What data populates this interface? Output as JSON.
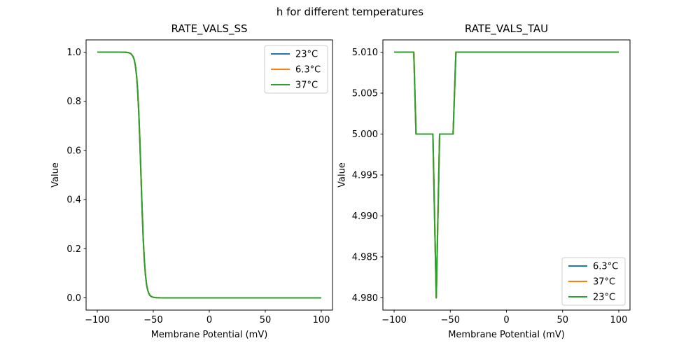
{
  "figure": {
    "suptitle": "h for different temperatures",
    "background": "#ffffff",
    "text_color": "#000000"
  },
  "chart_data": [
    {
      "type": "line",
      "title": "RATE_VALS_SS",
      "xlabel": "Membrane Potential (mV)",
      "ylabel": "Value",
      "xlim": [
        -110,
        110
      ],
      "ylim": [
        -0.05,
        1.05
      ],
      "grid": false,
      "xticks": [
        {
          "v": -100,
          "label": "−100"
        },
        {
          "v": -50,
          "label": "−50"
        },
        {
          "v": 0,
          "label": "0"
        },
        {
          "v": 50,
          "label": "50"
        },
        {
          "v": 100,
          "label": "100"
        }
      ],
      "yticks": [
        {
          "v": 0.0,
          "label": "0.0"
        },
        {
          "v": 0.2,
          "label": "0.2"
        },
        {
          "v": 0.4,
          "label": "0.4"
        },
        {
          "v": 0.6,
          "label": "0.6"
        },
        {
          "v": 0.8,
          "label": "0.8"
        },
        {
          "v": 1.0,
          "label": "1.0"
        }
      ],
      "legend": {
        "loc": "upper right",
        "entries": [
          {
            "label": "23°C",
            "color": "#1f77b4"
          },
          {
            "label": "6.3°C",
            "color": "#ff7f0e"
          },
          {
            "label": "37°C",
            "color": "#2ca02c"
          }
        ]
      },
      "shared_points": [
        [
          -100,
          1.0
        ],
        [
          -80,
          1.0
        ],
        [
          -75,
          0.9997
        ],
        [
          -72,
          0.998
        ],
        [
          -70,
          0.994
        ],
        [
          -68,
          0.982
        ],
        [
          -67,
          0.969
        ],
        [
          -66,
          0.946
        ],
        [
          -65,
          0.908
        ],
        [
          -64,
          0.847
        ],
        [
          -63,
          0.758
        ],
        [
          -62,
          0.639
        ],
        [
          -61,
          0.5
        ],
        [
          -60,
          0.361
        ],
        [
          -59,
          0.242
        ],
        [
          -58,
          0.153
        ],
        [
          -57,
          0.092
        ],
        [
          -56,
          0.054
        ],
        [
          -55,
          0.031
        ],
        [
          -54,
          0.018
        ],
        [
          -53,
          0.01
        ],
        [
          -52,
          0.006
        ],
        [
          -50,
          0.002
        ],
        [
          -47,
          0.0005
        ],
        [
          -44,
          0.0001
        ],
        [
          -40,
          0.0
        ],
        [
          -20,
          0.0
        ],
        [
          0,
          0.0
        ],
        [
          50,
          0.0
        ],
        [
          100,
          0.0
        ]
      ],
      "series": [
        {
          "name": "23°C",
          "color": "#1f77b4"
        },
        {
          "name": "6.3°C",
          "color": "#ff7f0e"
        },
        {
          "name": "37°C",
          "color": "#2ca02c"
        }
      ]
    },
    {
      "type": "line",
      "title": "RATE_VALS_TAU",
      "xlabel": "Membrane Potential (mV)",
      "ylabel": "Value",
      "xlim": [
        -110,
        110
      ],
      "ylim": [
        4.9785,
        5.0115
      ],
      "grid": false,
      "xticks": [
        {
          "v": -100,
          "label": "−100"
        },
        {
          "v": -50,
          "label": "−50"
        },
        {
          "v": 0,
          "label": "0"
        },
        {
          "v": 50,
          "label": "50"
        },
        {
          "v": 100,
          "label": "100"
        }
      ],
      "yticks": [
        {
          "v": 4.98,
          "label": "4.980"
        },
        {
          "v": 4.985,
          "label": "4.985"
        },
        {
          "v": 4.99,
          "label": "4.990"
        },
        {
          "v": 4.995,
          "label": "4.995"
        },
        {
          "v": 5.0,
          "label": "5.000"
        },
        {
          "v": 5.005,
          "label": "5.005"
        },
        {
          "v": 5.01,
          "label": "5.010"
        }
      ],
      "legend": {
        "loc": "lower right",
        "entries": [
          {
            "label": "6.3°C",
            "color": "#1f77b4"
          },
          {
            "label": "37°C",
            "color": "#ff7f0e"
          },
          {
            "label": "23°C",
            "color": "#2ca02c"
          }
        ]
      },
      "shared_points": [
        [
          -100,
          5.01
        ],
        [
          -82.5,
          5.01
        ],
        [
          -80.5,
          5.0
        ],
        [
          -65.5,
          5.0
        ],
        [
          -62.5,
          4.98
        ],
        [
          -59.5,
          5.0
        ],
        [
          -47.5,
          5.0
        ],
        [
          -45,
          5.01
        ],
        [
          0,
          5.01
        ],
        [
          50,
          5.01
        ],
        [
          100,
          5.01
        ]
      ],
      "series": [
        {
          "name": "6.3°C",
          "color": "#1f77b4"
        },
        {
          "name": "37°C",
          "color": "#ff7f0e"
        },
        {
          "name": "23°C",
          "color": "#2ca02c"
        }
      ]
    }
  ]
}
